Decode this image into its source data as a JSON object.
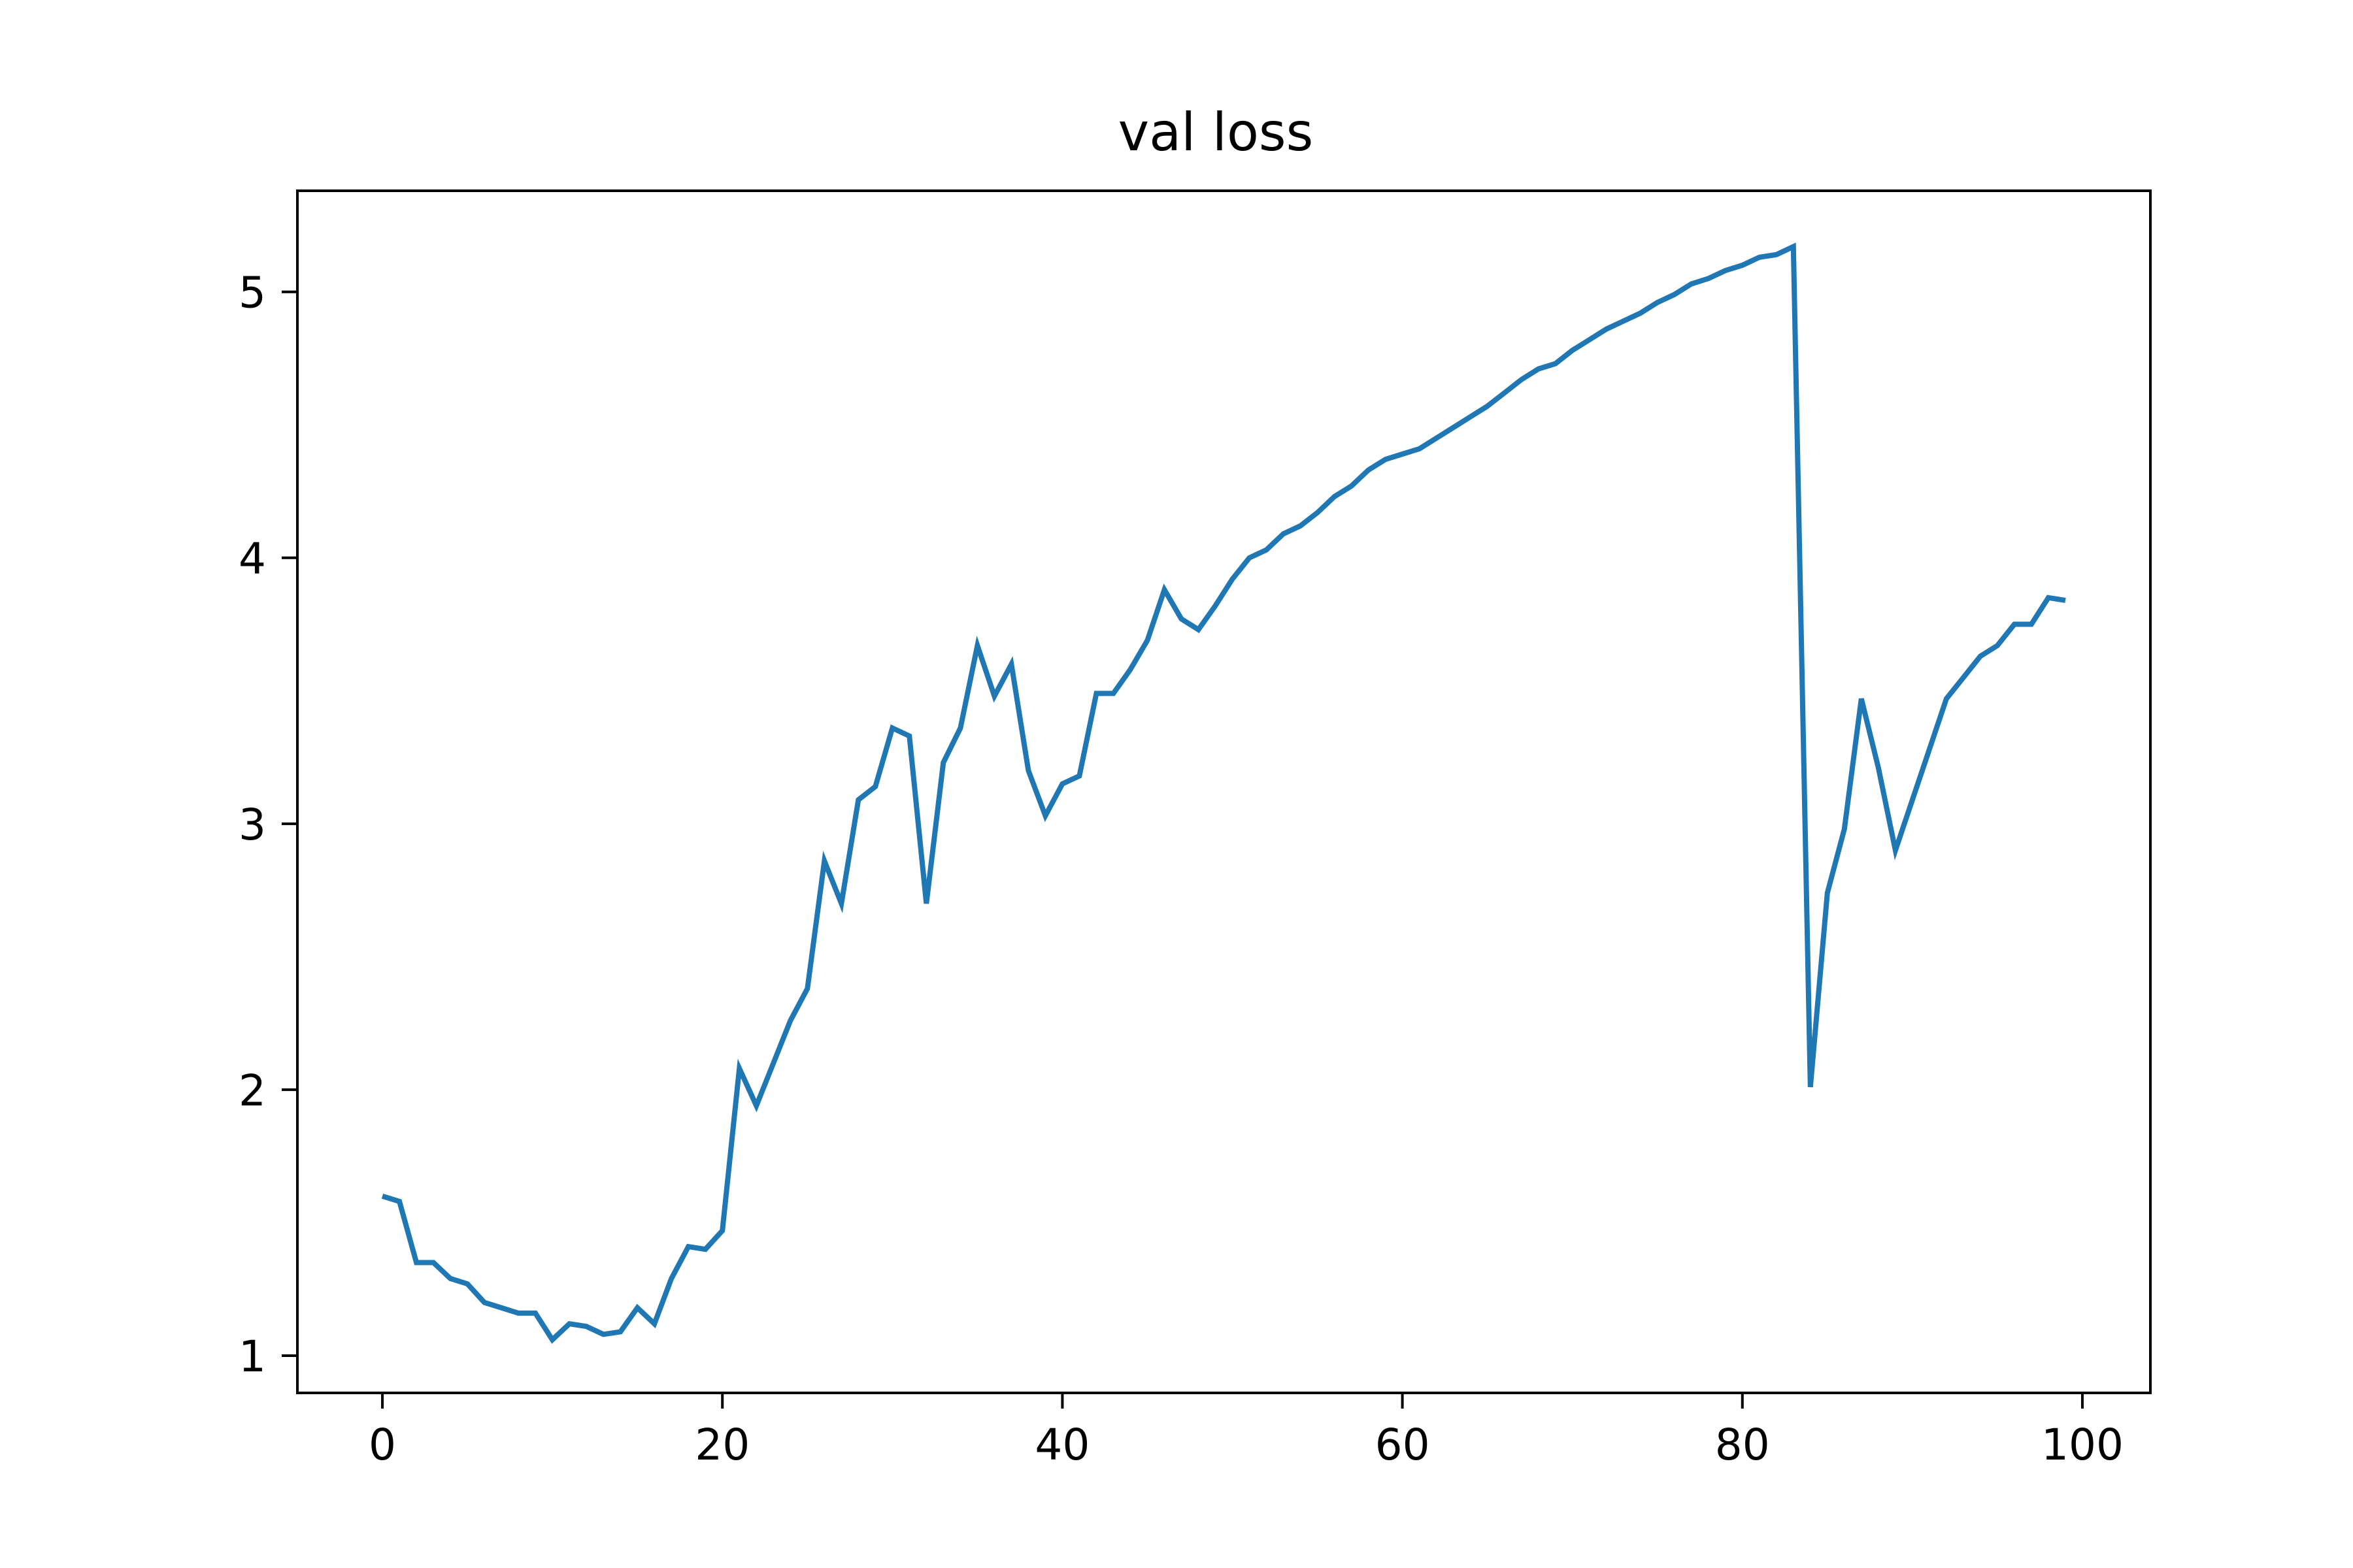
{
  "chart_data": {
    "type": "line",
    "title": "val loss",
    "xlabel": "",
    "ylabel": "",
    "xlim": [
      -5,
      104
    ],
    "ylim": [
      0.86,
      5.38
    ],
    "xticks": [
      0,
      20,
      40,
      60,
      80,
      100
    ],
    "yticks": [
      1,
      2,
      3,
      4,
      5
    ],
    "grid": false,
    "series": [
      {
        "color": "#1f77b4",
        "x": [
          0,
          1,
          2,
          3,
          4,
          5,
          6,
          7,
          8,
          9,
          10,
          11,
          12,
          13,
          14,
          15,
          16,
          17,
          18,
          19,
          20,
          21,
          22,
          23,
          24,
          25,
          26,
          27,
          28,
          29,
          30,
          31,
          32,
          33,
          34,
          35,
          36,
          37,
          38,
          39,
          40,
          41,
          42,
          43,
          44,
          45,
          46,
          47,
          48,
          49,
          50,
          51,
          52,
          53,
          54,
          55,
          56,
          57,
          58,
          59,
          60,
          61,
          62,
          63,
          64,
          65,
          66,
          67,
          68,
          69,
          70,
          71,
          72,
          73,
          74,
          75,
          76,
          77,
          78,
          79,
          80,
          81,
          82,
          83,
          84,
          85,
          86,
          87,
          88,
          89,
          90,
          91,
          92,
          93,
          94,
          95,
          96,
          97,
          98,
          99
        ],
        "y": [
          1.6,
          1.58,
          1.35,
          1.35,
          1.29,
          1.27,
          1.2,
          1.18,
          1.16,
          1.16,
          1.06,
          1.12,
          1.11,
          1.08,
          1.09,
          1.18,
          1.12,
          1.29,
          1.41,
          1.4,
          1.47,
          2.08,
          1.94,
          2.1,
          2.26,
          2.38,
          2.86,
          2.7,
          3.09,
          3.14,
          3.36,
          3.33,
          2.7,
          3.23,
          3.36,
          3.67,
          3.48,
          3.6,
          3.2,
          3.03,
          3.15,
          3.18,
          3.49,
          3.49,
          3.58,
          3.69,
          3.88,
          3.77,
          3.73,
          3.82,
          3.92,
          4.0,
          4.03,
          4.09,
          4.12,
          4.17,
          4.23,
          4.27,
          4.33,
          4.37,
          4.39,
          4.41,
          4.45,
          4.49,
          4.53,
          4.57,
          4.62,
          4.67,
          4.71,
          4.73,
          4.78,
          4.82,
          4.86,
          4.89,
          4.92,
          4.96,
          4.99,
          5.03,
          5.05,
          5.08,
          5.1,
          5.13,
          5.14,
          5.17,
          2.01,
          2.74,
          2.98,
          3.47,
          3.21,
          2.9,
          3.09,
          3.28,
          3.47,
          3.55,
          3.63,
          3.67,
          3.75,
          3.75,
          3.85,
          3.84
        ]
      }
    ]
  }
}
